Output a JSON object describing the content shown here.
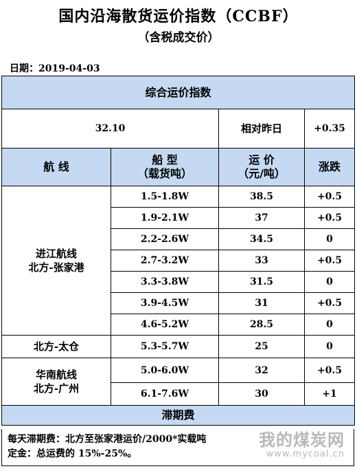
{
  "title": "国内沿海散货运价指数（CCBF）",
  "subtitle": "（含税成交价）",
  "date": "日期：2019-04-03",
  "composite": {
    "header": "综合运价指数",
    "value": "32.10",
    "relative_label": "相对昨日",
    "change": "+0.35"
  },
  "columns": {
    "route": "航  线",
    "ship_type": "船  型",
    "ship_type_unit": "（载货吨）",
    "freight": "运  价",
    "freight_unit": "（元/吨）",
    "change": "涨跌"
  },
  "routes": [
    {
      "line1": "进江航线",
      "line2": "北方-张家港",
      "rows": [
        {
          "ship": "1.5-1.8W",
          "price": "38.5",
          "change": "+0.5"
        },
        {
          "ship": "1.9-2.1W",
          "price": "37",
          "change": "+0.5"
        },
        {
          "ship": "2.2-2.6W",
          "price": "34.5",
          "change": "0"
        },
        {
          "ship": "2.7-3.2W",
          "price": "33",
          "change": "+0.5"
        },
        {
          "ship": "3.3-3.8W",
          "price": "31.5",
          "change": "0"
        },
        {
          "ship": "3.9-4.5W",
          "price": "31",
          "change": "+0.5"
        },
        {
          "ship": "4.6-5.2W",
          "price": "28.5",
          "change": "0"
        }
      ]
    },
    {
      "line1": "北方-太仓",
      "rows": [
        {
          "ship": "5.3-5.7W",
          "price": "25",
          "change": "0"
        }
      ]
    },
    {
      "line1": "华南航线",
      "line2": "北方-广州",
      "rows": [
        {
          "ship": "5.0-6.0W",
          "price": "32",
          "change": "+0.5"
        },
        {
          "ship": "6.1-7.6W",
          "price": "30",
          "change": "+1"
        }
      ]
    }
  ],
  "demurrage": {
    "header": "滞期费",
    "line1": "每天滞期费：北方至张家港运价/2000*实载吨",
    "line2": "定金：总运费的 15%-25%。"
  },
  "watermark": {
    "brand": "我的煤炭网",
    "url": "www.mycoal.cn",
    "color": "#a0a0a0"
  },
  "colors": {
    "header_bg": "#c5daf2"
  }
}
